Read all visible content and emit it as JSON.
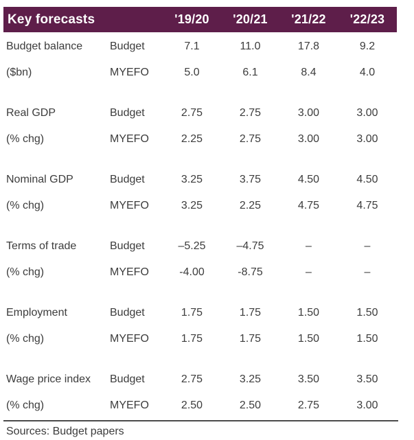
{
  "chart_data": {
    "type": "table",
    "title": "Key forecasts",
    "columns": [
      "'19/20",
      "'20/21",
      "'21/22",
      "'22/23"
    ],
    "groups": [
      {
        "name": "Budget balance",
        "unit": "($bn)",
        "rows": [
          {
            "source": "Budget",
            "values": [
              "7.1",
              "11.0",
              "17.8",
              "9.2"
            ]
          },
          {
            "source": "MYEFO",
            "values": [
              "5.0",
              "6.1",
              "8.4",
              "4.0"
            ]
          }
        ]
      },
      {
        "name": "Real GDP",
        "unit": "(% chg)",
        "rows": [
          {
            "source": "Budget",
            "values": [
              "2.75",
              "2.75",
              "3.00",
              "3.00"
            ]
          },
          {
            "source": "MYEFO",
            "values": [
              "2.25",
              "2.75",
              "3.00",
              "3.00"
            ]
          }
        ]
      },
      {
        "name": "Nominal GDP",
        "unit": "(% chg)",
        "rows": [
          {
            "source": "Budget",
            "values": [
              "3.25",
              "3.75",
              "4.50",
              "4.50"
            ]
          },
          {
            "source": "MYEFO",
            "values": [
              "3.25",
              "2.25",
              "4.75",
              "4.75"
            ]
          }
        ]
      },
      {
        "name": "Terms of trade",
        "unit": "(% chg)",
        "rows": [
          {
            "source": "Budget",
            "values": [
              "–5.25",
              "–4.75",
              "–",
              "–"
            ]
          },
          {
            "source": "MYEFO",
            "values": [
              "-4.00",
              "-8.75",
              "–",
              "–"
            ]
          }
        ]
      },
      {
        "name": "Employment",
        "unit": "(% chg)",
        "rows": [
          {
            "source": "Budget",
            "values": [
              "1.75",
              "1.75",
              "1.50",
              "1.50"
            ]
          },
          {
            "source": "MYEFO",
            "values": [
              "1.75",
              "1.75",
              "1.50",
              "1.50"
            ]
          }
        ]
      },
      {
        "name": "Wage price index",
        "unit": "(% chg)",
        "rows": [
          {
            "source": "Budget",
            "values": [
              "2.75",
              "3.25",
              "3.50",
              "3.50"
            ]
          },
          {
            "source": "MYEFO",
            "values": [
              "2.50",
              "2.50",
              "2.75",
              "3.00"
            ]
          }
        ]
      }
    ],
    "source_note": "Sources: Budget papers"
  },
  "colors": {
    "header_bg": "#5E1E4A",
    "header_text": "#FFFFFF",
    "body_text": "#3C3C3C",
    "divider": "#4B4B4B"
  }
}
